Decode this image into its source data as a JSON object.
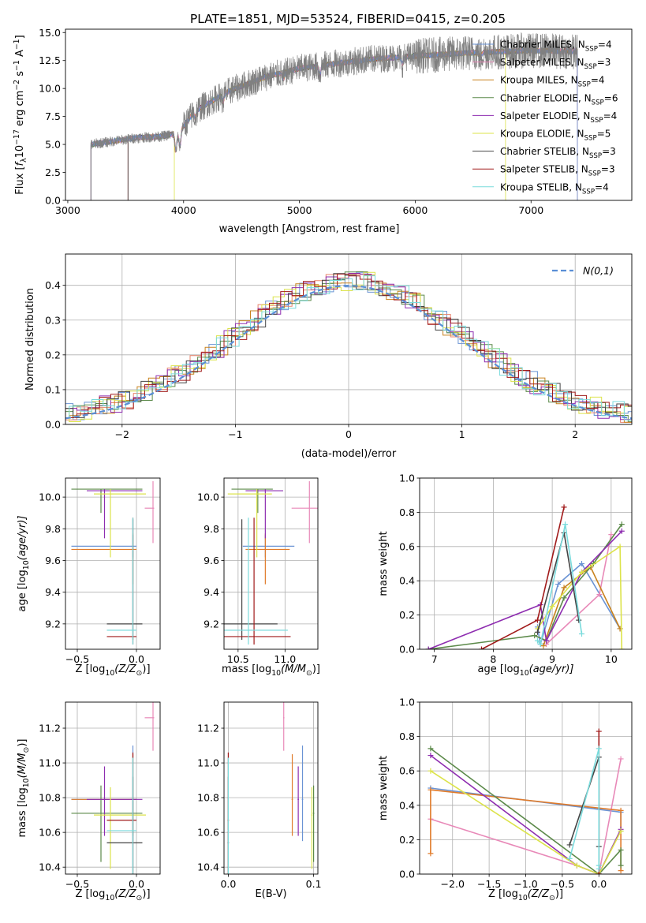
{
  "figure_title": "PLATE=1851, MJD=53524, FIBERID=0415, z=0.205",
  "colors": {
    "chabrier_miles": "#6a93d4",
    "salpeter_miles": "#e8836b",
    "kroupa_miles": "#c8821e",
    "chabrier_elodie": "#5c8a4a",
    "salpeter_elodie": "#8e2db0",
    "kroupa_elodie": "#dce34a",
    "chabrier_stelib": "#444444",
    "salpeter_stelib": "#a11a1a",
    "kroupa_stelib": "#7adbdc",
    "normal": "#5a8fd6",
    "pink": "#e889b8",
    "orange": "#e07b2a"
  },
  "chart_data": [
    {
      "id": "spectrum",
      "type": "line",
      "xlabel": "wavelength [Angstrom, rest frame]",
      "ylabel_parts": [
        "Flux [",
        "f",
        "λ",
        "10",
        "−17",
        " erg cm",
        "−2",
        " s",
        "−1",
        " A",
        "−1",
        "]"
      ],
      "xlim": [
        2980,
        7870
      ],
      "ylim": [
        0,
        15.3
      ],
      "xticks": [
        3000,
        4000,
        5000,
        6000,
        7000
      ],
      "yticks": [
        0.0,
        2.5,
        5.0,
        7.5,
        10.0,
        12.5,
        15.0
      ],
      "grid": false,
      "legend_placement": "top-right",
      "legend": [
        {
          "main": "Chabrier MILES, N",
          "sub": "SSP",
          "tail": "=4",
          "color": "#6a93d4"
        },
        {
          "main": "Salpeter MILES, N",
          "sub": "SSP",
          "tail": "=3",
          "color": "#e889b8"
        },
        {
          "main": "Kroupa MILES, N",
          "sub": "SSP",
          "tail": "=4",
          "color": "#c8821e"
        },
        {
          "main": "Chabrier ELODIE, N",
          "sub": "SSP",
          "tail": "=6",
          "color": "#5c8a4a"
        },
        {
          "main": "Salpeter ELODIE, N",
          "sub": "SSP",
          "tail": "=4",
          "color": "#8e2db0"
        },
        {
          "main": "Kroupa ELODIE, N",
          "sub": "SSP",
          "tail": "=5",
          "color": "#dce34a"
        },
        {
          "main": "Chabrier STELIB, N",
          "sub": "SSP",
          "tail": "=3",
          "color": "#444444"
        },
        {
          "main": "Salpeter STELIB, N",
          "sub": "SSP",
          "tail": "=3",
          "color": "#a11a1a"
        },
        {
          "main": "Kroupa STELIB, N",
          "sub": "SSP",
          "tail": "=4",
          "color": "#7adbdc"
        }
      ],
      "continuum": [
        [
          3200,
          5.0
        ],
        [
          3400,
          5.3
        ],
        [
          3600,
          5.6
        ],
        [
          3800,
          5.7
        ],
        [
          3950,
          6.0
        ],
        [
          4100,
          8.0
        ],
        [
          4400,
          9.8
        ],
        [
          4700,
          11.0
        ],
        [
          5000,
          11.8
        ],
        [
          5300,
          12.2
        ],
        [
          5600,
          12.6
        ],
        [
          6000,
          12.9
        ],
        [
          6500,
          13.2
        ],
        [
          7000,
          13.4
        ],
        [
          7400,
          13.3
        ]
      ],
      "model_ranges": [
        [
          3200,
          7400
        ],
        [
          3200,
          7400
        ],
        [
          3200,
          7400
        ],
        [
          3200,
          7400
        ],
        [
          3200,
          7400
        ],
        [
          3920,
          6780
        ],
        [
          3520,
          7400
        ],
        [
          3520,
          7400
        ],
        [
          3200,
          7400
        ]
      ],
      "data_range": [
        3200,
        7400
      ]
    },
    {
      "id": "residual-histogram",
      "type": "histogram",
      "xlabel": "(data-model)/error",
      "ylabel": "Normed distribution",
      "xlim": [
        -2.5,
        2.5
      ],
      "ylim": [
        0,
        0.49
      ],
      "xticks": [
        -2,
        -1,
        0,
        1,
        2
      ],
      "yticks": [
        0.0,
        0.1,
        0.2,
        0.3,
        0.4
      ],
      "grid": true,
      "legend_placement": "top-right",
      "legend": [
        {
          "label": "N(0,1)",
          "style": "dashed",
          "color": "#5a8fd6"
        }
      ]
    },
    {
      "id": "age-vs-Z",
      "type": "errorbar",
      "xlabel_parts": [
        "Z [log",
        "10",
        "(Z/Z",
        "⊙",
        ")]"
      ],
      "ylabel_parts": [
        "age  [log",
        "10",
        "(age/yr)]"
      ],
      "xlim": [
        -0.6,
        0.2
      ],
      "ylim": [
        9.04,
        10.12
      ],
      "xticks": [
        -0.5,
        0.0
      ],
      "yticks": [
        9.2,
        9.4,
        9.6,
        9.8,
        10.0
      ],
      "grid": true
    },
    {
      "id": "age-vs-mass",
      "type": "errorbar",
      "xlabel_parts": [
        "mass [log",
        "10",
        "(M/M",
        "⊙",
        ")]"
      ],
      "xlim": [
        10.35,
        11.35
      ],
      "ylim": [
        9.04,
        10.12
      ],
      "xticks": [
        10.5,
        11.0
      ],
      "yticks": [
        9.2,
        9.4,
        9.6,
        9.8,
        10.0
      ],
      "grid": true
    },
    {
      "id": "massweight-vs-age",
      "type": "line",
      "xlabel_parts": [
        "age  [log",
        "10",
        "(age/yr)]"
      ],
      "ylabel": "mass weight",
      "xlim": [
        6.75,
        10.35
      ],
      "ylim": [
        0,
        1.0
      ],
      "xticks": [
        7,
        8,
        9,
        10
      ],
      "yticks": [
        0.0,
        0.2,
        0.4,
        0.6,
        0.8,
        1.0
      ],
      "grid": true,
      "series": [
        {
          "color": "#6a93d4",
          "x": [
            8.75,
            8.8,
            9.1,
            9.5,
            10.15
          ],
          "y": [
            0.13,
            0.03,
            0.38,
            0.5,
            0.12
          ]
        },
        {
          "color": "#e889b8",
          "x": [
            8.9,
            9.8,
            10.0
          ],
          "y": [
            0.03,
            0.32,
            0.67
          ]
        },
        {
          "color": "#c8821e",
          "x": [
            8.85,
            9.2,
            9.65,
            10.15
          ],
          "y": [
            0.02,
            0.36,
            0.48,
            0.12
          ]
        },
        {
          "color": "#5c8a4a",
          "x": [
            6.9,
            8.7,
            8.9,
            9.2,
            9.7,
            10.18
          ],
          "y": [
            0.0,
            0.08,
            0.05,
            0.3,
            0.5,
            0.73
          ]
        },
        {
          "color": "#8e2db0",
          "x": [
            6.9,
            8.8,
            8.9,
            9.5,
            10.18
          ],
          "y": [
            0.0,
            0.26,
            0.05,
            0.45,
            0.69
          ]
        },
        {
          "color": "#dce34a",
          "x": [
            8.75,
            9.0,
            9.5,
            10.15,
            10.18
          ],
          "y": [
            0.12,
            0.25,
            0.45,
            0.6,
            0.0
          ]
        },
        {
          "color": "#444444",
          "x": [
            8.75,
            9.2,
            9.45
          ],
          "y": [
            0.1,
            0.68,
            0.17
          ]
        },
        {
          "color": "#a11a1a",
          "x": [
            7.8,
            8.75,
            9.2
          ],
          "y": [
            0.0,
            0.17,
            0.83
          ]
        },
        {
          "color": "#7adbdc",
          "x": [
            8.75,
            8.8,
            9.22,
            9.5
          ],
          "y": [
            0.05,
            0.03,
            0.73,
            0.09
          ]
        }
      ]
    },
    {
      "id": "mass-vs-Z",
      "type": "errorbar",
      "xlabel_parts": [
        "Z [log",
        "10",
        "(Z/Z",
        "⊙",
        ")]"
      ],
      "ylabel_parts": [
        "mass [log",
        "10",
        "(M/M",
        "⊙",
        ")]"
      ],
      "xlim": [
        -0.6,
        0.2
      ],
      "ylim": [
        10.36,
        11.35
      ],
      "xticks": [
        -0.5,
        0.0
      ],
      "yticks": [
        10.4,
        10.6,
        10.8,
        11.0,
        11.2
      ],
      "grid": true
    },
    {
      "id": "mass-vs-EBV",
      "type": "errorbar",
      "xlabel": "E(B-V)",
      "xlim": [
        -0.005,
        0.105
      ],
      "ylim": [
        10.36,
        11.35
      ],
      "xticks": [
        0.0,
        0.1
      ],
      "yticks": [
        10.4,
        10.6,
        10.8,
        11.0,
        11.2
      ],
      "grid": true
    },
    {
      "id": "massweight-vs-Z",
      "type": "line",
      "xlabel_parts": [
        "Z [log",
        "10",
        "(Z/Z",
        "⊙",
        ")]"
      ],
      "ylabel": "mass weight",
      "xlim": [
        -2.45,
        0.45
      ],
      "ylim": [
        0,
        1.0
      ],
      "xticks": [
        -2.0,
        -1.5,
        -1.0,
        -0.5,
        0.0
      ],
      "yticks": [
        0.0,
        0.2,
        0.4,
        0.6,
        0.8,
        1.0
      ],
      "grid": true,
      "series": [
        {
          "color": "#6a93d4",
          "x": [
            -2.3,
            0.3,
            0.3
          ],
          "y": [
            0.5,
            0.36,
            0.25
          ]
        },
        {
          "color": "#e889b8",
          "x": [
            -2.3,
            -0.3,
            0.0,
            0.3
          ],
          "y": [
            0.32,
            0.05,
            0.0,
            0.67
          ]
        },
        {
          "color": "#e07b2a",
          "x": [
            -2.3,
            -2.3,
            0.3,
            0.3
          ],
          "y": [
            0.12,
            0.49,
            0.37,
            0.02
          ]
        },
        {
          "color": "#5c8a4a",
          "x": [
            -2.3,
            0.0,
            0.3,
            0.3
          ],
          "y": [
            0.73,
            0.0,
            0.14,
            0.05
          ]
        },
        {
          "color": "#8e2db0",
          "x": [
            -2.3,
            -0.3,
            0.0,
            0.3
          ],
          "y": [
            0.69,
            0.05,
            0.0,
            0.26
          ]
        },
        {
          "color": "#dce34a",
          "x": [
            -2.3,
            -0.3,
            0.0,
            0.3
          ],
          "y": [
            0.6,
            0.05,
            0.0,
            0.25
          ]
        },
        {
          "color": "#444444",
          "x": [
            -0.4,
            0.0,
            0.0
          ],
          "y": [
            0.17,
            0.68,
            0.16
          ]
        },
        {
          "color": "#a11a1a",
          "x": [
            0.0,
            0.0
          ],
          "y": [
            0.0,
            0.83
          ]
        },
        {
          "color": "#7adbdc",
          "x": [
            -0.4,
            0.0,
            0.0,
            0.0
          ],
          "y": [
            0.09,
            0.73,
            0.03,
            0.05
          ]
        }
      ]
    }
  ],
  "errorbar_points": [
    {
      "color": "#6a93d4",
      "Z": [
        -0.03,
        -0.55,
        0.0
      ],
      "age": [
        9.69,
        9.62,
        9.76
      ],
      "mass": [
        10.79,
        10.55,
        11.1
      ],
      "ebv": [
        0.087,
        0.06
      ]
    },
    {
      "color": "#e889b8",
      "Z": [
        0.14,
        0.07,
        0.15
      ],
      "age": [
        9.93,
        9.71,
        10.1
      ],
      "mass": [
        11.26,
        11.07,
        11.35
      ],
      "ebv": [
        0.065,
        0.05
      ]
    },
    {
      "color": "#e07b2a",
      "Z": [
        -0.03,
        -0.55,
        0.0
      ],
      "age": [
        9.67,
        9.45,
        9.77
      ],
      "mass": [
        10.79,
        10.58,
        11.05
      ],
      "ebv": [
        0.075,
        0.06
      ]
    },
    {
      "color": "#5c8a4a",
      "Z": [
        -0.3,
        -0.55,
        0.05
      ],
      "age": [
        10.05,
        9.9,
        10.05
      ],
      "mass": [
        10.71,
        10.43,
        10.87
      ],
      "ebv": [
        0.1,
        0.05
      ]
    },
    {
      "color": "#8e2db0",
      "Z": [
        -0.27,
        -0.42,
        0.05
      ],
      "age": [
        10.04,
        9.74,
        10.05
      ],
      "mass": [
        10.79,
        10.58,
        10.98
      ],
      "ebv": [
        0.082,
        0.05
      ]
    },
    {
      "color": "#dce34a",
      "Z": [
        -0.22,
        -0.36,
        0.08
      ],
      "age": [
        10.02,
        9.62,
        10.05
      ],
      "mass": [
        10.7,
        10.39,
        10.86
      ],
      "ebv": [
        0.098,
        0.05
      ]
    },
    {
      "color": "#444444",
      "Z": [
        -0.03,
        -0.25,
        0.05
      ],
      "age": [
        9.2,
        9.1,
        9.86
      ],
      "mass": [
        10.54,
        10.3,
        10.92
      ],
      "ebv": [
        0.0,
        0.03
      ]
    },
    {
      "color": "#a11a1a",
      "Z": [
        -0.03,
        -0.25,
        0.0
      ],
      "age": [
        9.12,
        9.07,
        9.87
      ],
      "mass": [
        10.67,
        10.3,
        11.06
      ],
      "ebv": [
        0.0,
        0.03
      ]
    },
    {
      "color": "#7adbdc",
      "Z": [
        -0.03,
        -0.25,
        0.0
      ],
      "age": [
        9.16,
        9.07,
        9.87
      ],
      "mass": [
        10.61,
        10.3,
        11.03
      ],
      "ebv": [
        0.0,
        0.03
      ]
    }
  ]
}
